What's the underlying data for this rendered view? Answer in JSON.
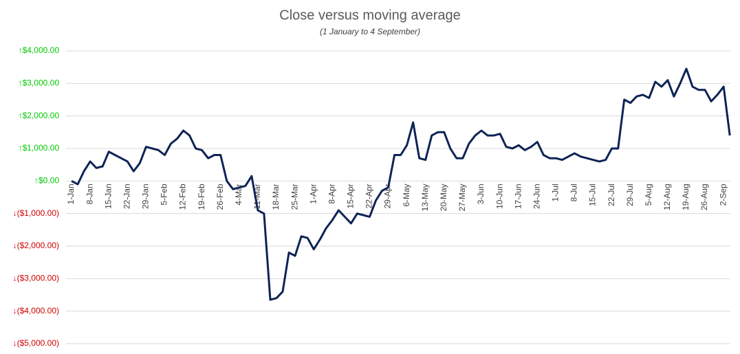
{
  "chart_data": {
    "type": "line",
    "title": "Close versus moving average",
    "subtitle": "(1 January to 4 September)",
    "categories": [
      "1-Jan",
      null,
      null,
      "8-Jan",
      null,
      null,
      "15-Jan",
      null,
      null,
      "22-Jan",
      null,
      null,
      "29-Jan",
      null,
      null,
      "5-Feb",
      null,
      null,
      "12-Feb",
      null,
      null,
      "19-Feb",
      null,
      null,
      "26-Feb",
      null,
      null,
      "4-Mar",
      null,
      null,
      "11-Mar",
      null,
      null,
      "18-Mar",
      null,
      null,
      "25-Mar",
      null,
      null,
      "1-Apr",
      null,
      null,
      "8-Apr",
      null,
      null,
      "15-Apr",
      null,
      null,
      "22-Apr",
      null,
      null,
      "29-Apr",
      null,
      null,
      "6-May",
      null,
      null,
      "13-May",
      null,
      null,
      "20-May",
      null,
      null,
      "27-May",
      null,
      null,
      "3-Jun",
      null,
      null,
      "10-Jun",
      null,
      null,
      "17-Jun",
      null,
      null,
      "24-Jun",
      null,
      null,
      "1-Jul",
      null,
      null,
      "8-Jul",
      null,
      null,
      "15-Jul",
      null,
      null,
      "22-Jul",
      null,
      null,
      "29-Jul",
      null,
      null,
      "5-Aug",
      null,
      null,
      "12-Aug",
      null,
      null,
      "19-Aug",
      null,
      null,
      "26-Aug",
      null,
      null,
      "2-Sep",
      null
    ],
    "series": [
      {
        "color": "#0e2356",
        "values": [
          0,
          -100,
          300,
          600,
          400,
          450,
          900,
          800,
          700,
          600,
          300,
          550,
          1050,
          1000,
          950,
          800,
          1150,
          1300,
          1550,
          1400,
          1000,
          950,
          700,
          800,
          800,
          0,
          -250,
          -200,
          -150,
          150,
          -900,
          -1000,
          -3650,
          -3600,
          -3400,
          -2200,
          -2300,
          -1700,
          -1750,
          -2100,
          -1800,
          -1450,
          -1200,
          -900,
          -1100,
          -1300,
          -1000,
          -1050,
          -1100,
          -600,
          -300,
          -200,
          800,
          800,
          1100,
          1800,
          700,
          650,
          1400,
          1500,
          1500,
          1000,
          700,
          700,
          1150,
          1400,
          1550,
          1400,
          1400,
          1450,
          1050,
          1000,
          1100,
          950,
          1050,
          1200,
          800,
          700,
          700,
          650,
          750,
          850,
          750,
          700,
          650,
          600,
          650,
          1000,
          1000,
          2500,
          2400,
          2600,
          2650,
          2550,
          3050,
          2900,
          3100,
          2600,
          3000,
          3450,
          2900,
          2800,
          2800,
          2450,
          2650,
          2900,
          1400
        ]
      }
    ],
    "ylim": [
      -5000,
      4000
    ],
    "yticks": [
      {
        "value": 4000,
        "label": "↑$4,000.00"
      },
      {
        "value": 3000,
        "label": "↑$3,000.00"
      },
      {
        "value": 2000,
        "label": "↑$2,000.00"
      },
      {
        "value": 1000,
        "label": "↑$1,000.00"
      },
      {
        "value": 0,
        "label": "↑$0.00"
      },
      {
        "value": -1000,
        "label": "↓($1,000.00)"
      },
      {
        "value": -2000,
        "label": "↓($2,000.00)"
      },
      {
        "value": -3000,
        "label": "↓($3,000.00)"
      },
      {
        "value": -4000,
        "label": "↓($4,000.00)"
      },
      {
        "value": -5000,
        "label": "↓($5,000.00)"
      }
    ],
    "grid": true,
    "up_color": "#00c800",
    "down_color": "#d00000"
  }
}
